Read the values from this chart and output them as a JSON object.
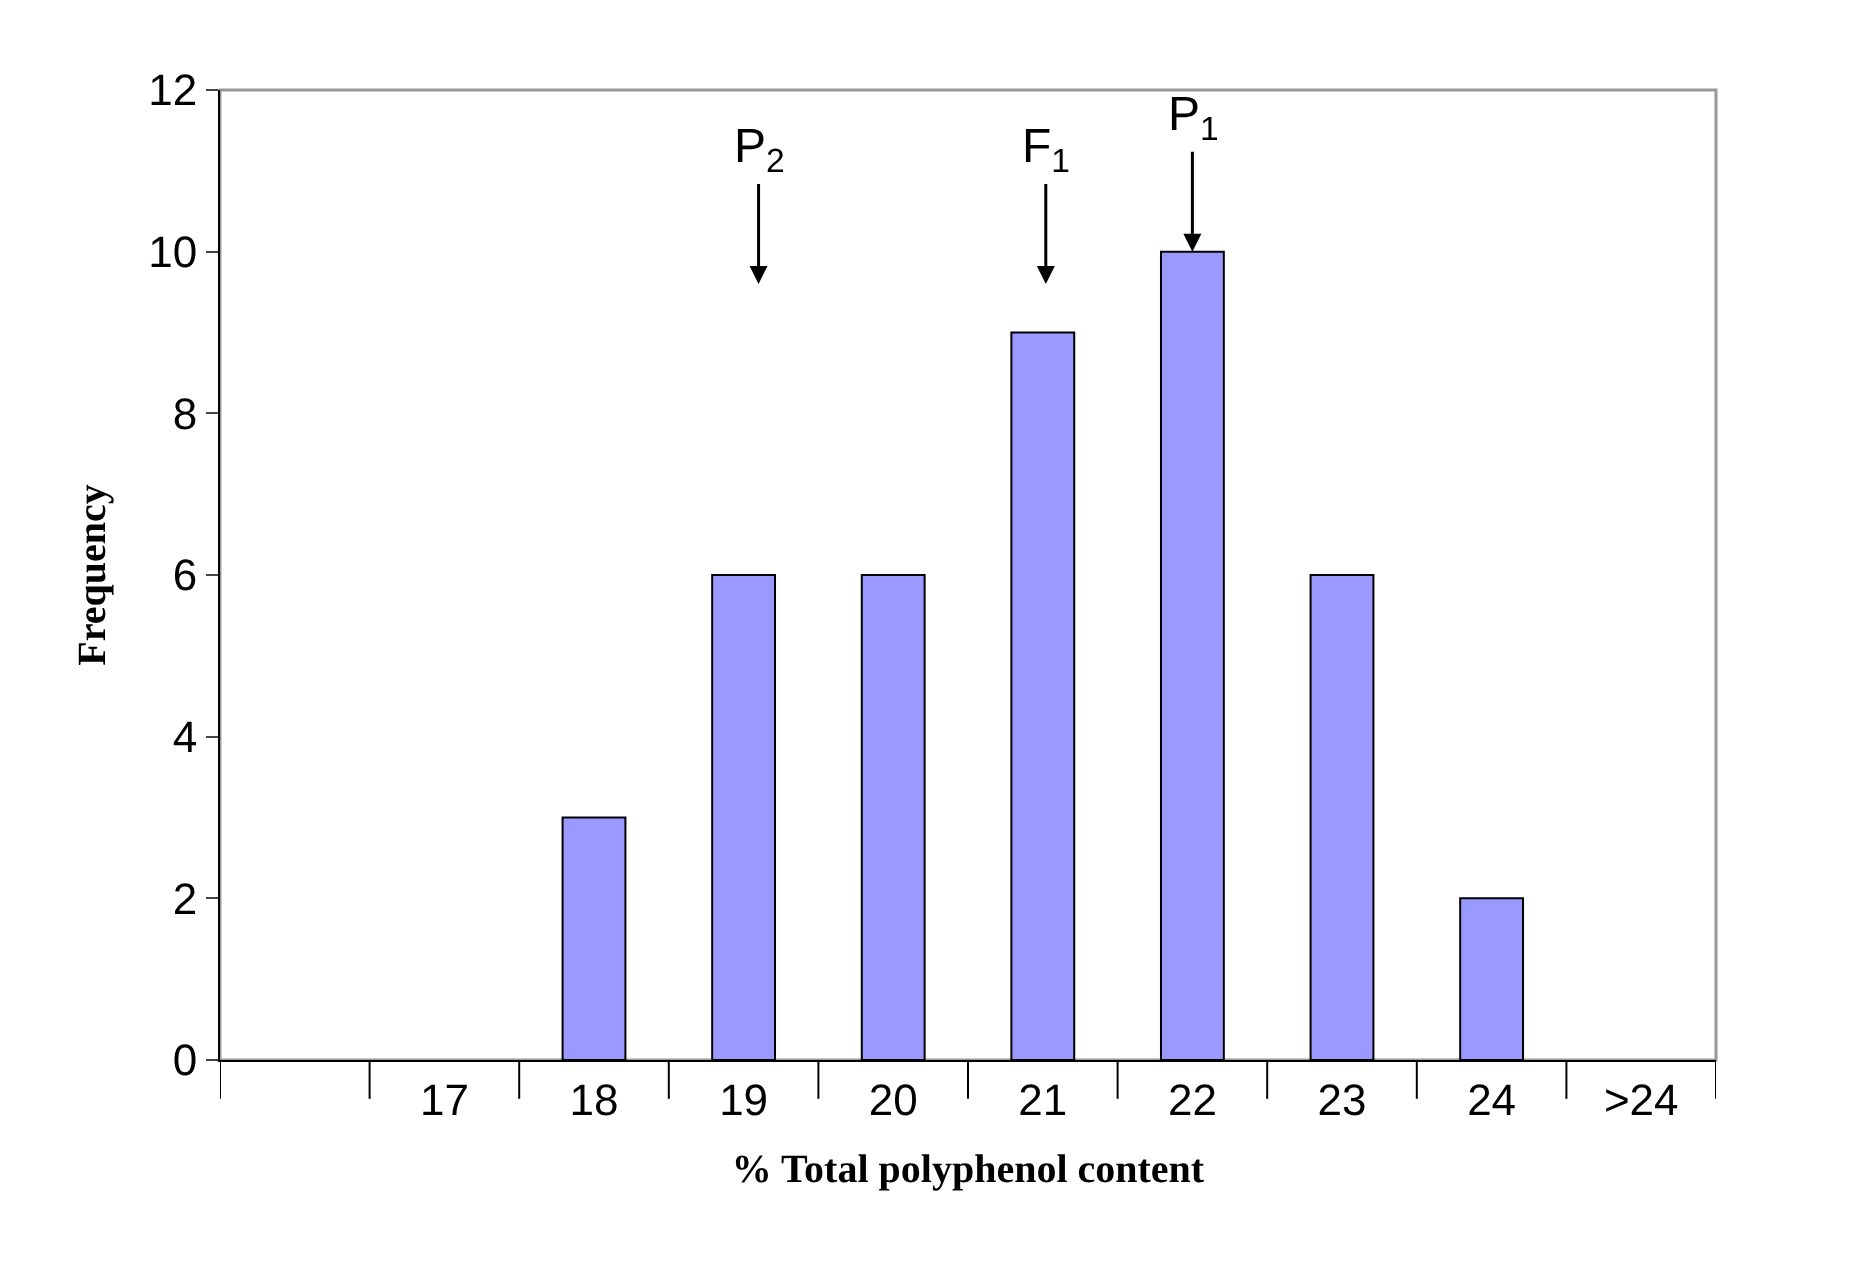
{
  "chart_data": {
    "type": "bar",
    "xlabel": "% Total polyphenol content",
    "ylabel": "Frequency",
    "categories": [
      null,
      "17",
      "18",
      "19",
      "20",
      "21",
      "22",
      "23",
      "24",
      ">24"
    ],
    "values": [
      0,
      0,
      3,
      6,
      6,
      9,
      10,
      6,
      2,
      0
    ],
    "color": "#9999ff",
    "ylim": [
      0,
      12
    ],
    "yticks": [
      0,
      2,
      4,
      6,
      8,
      10,
      12
    ],
    "grid": false,
    "legend": false,
    "annotations": [
      "P$_{2}$",
      "F$_{1}$",
      {
        "text": "P$_{1}$",
        "x": "22",
        "y": 10
      }
    ]
  }
}
